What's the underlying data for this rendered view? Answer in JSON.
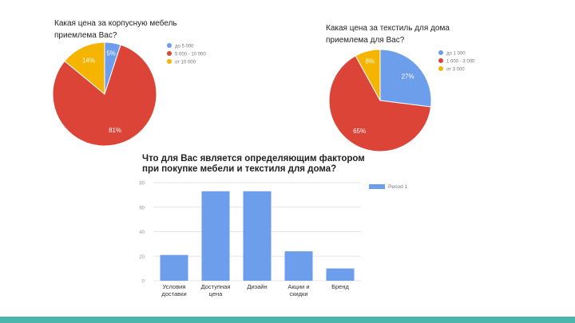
{
  "colors": {
    "blue": "#6d9eeb",
    "red": "#db4437",
    "orange": "#f4b400",
    "footer": "#4db6ac",
    "grid": "#e6e6e6"
  },
  "chart_data": [
    {
      "id": "furniture-pie",
      "type": "pie",
      "title": "Какая цена за корпусную мебель приемлема Вас?",
      "slices": [
        {
          "name": "до 5 000",
          "value": 5,
          "label": "5%",
          "color": "#6d9eeb"
        },
        {
          "name": "5 000 - 10 000",
          "value": 81,
          "label": "81%",
          "color": "#db4437"
        },
        {
          "name": "от 10 000",
          "value": 14,
          "label": "14%",
          "color": "#f4b400"
        }
      ],
      "legend_position": "right"
    },
    {
      "id": "textile-pie",
      "type": "pie",
      "title": "Какая цена за текстиль для дома приемлема для Вас?",
      "slices": [
        {
          "name": "до 1 000",
          "value": 27,
          "label": "27%",
          "color": "#6d9eeb"
        },
        {
          "name": "1 000 - 3 000",
          "value": 65,
          "label": "65%",
          "color": "#db4437"
        },
        {
          "name": "от 3 000",
          "value": 8,
          "label": "8%",
          "color": "#f4b400"
        }
      ],
      "legend_position": "right"
    },
    {
      "id": "factors-bar",
      "type": "bar",
      "title": "Что для Вас является определяющим фактором при покупке мебели и текстиля для дома?",
      "categories": [
        "Условия доставки",
        "Доступная цена",
        "Дизайн",
        "Акции и скидки",
        "Бренд"
      ],
      "series": [
        {
          "name": "Period 1",
          "values": [
            21,
            73,
            73,
            24,
            10
          ],
          "color": "#6d9eeb"
        }
      ],
      "yticks": [
        0,
        20,
        40,
        60,
        80
      ],
      "ylim": [
        0,
        80
      ],
      "grid": true,
      "legend_position": "top-right"
    }
  ]
}
